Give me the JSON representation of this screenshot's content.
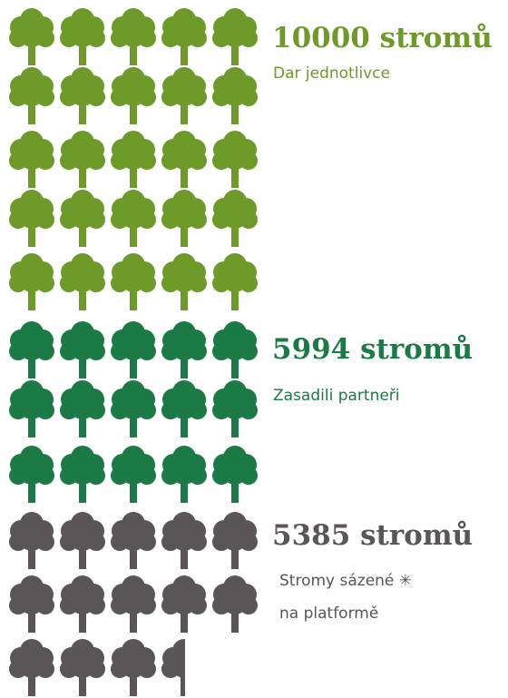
{
  "groups": [
    {
      "title": "10000 stromů",
      "subtitle": [
        "Dar jednotlivce"
      ]
    },
    {
      "title": "5994 stromů",
      "subtitle": [
        "Zasadili partneři"
      ]
    },
    {
      "title": "5385 stromů",
      "subtitle": [
        "Stromy sázené ✳",
        "na platformě"
      ]
    }
  ]
}
